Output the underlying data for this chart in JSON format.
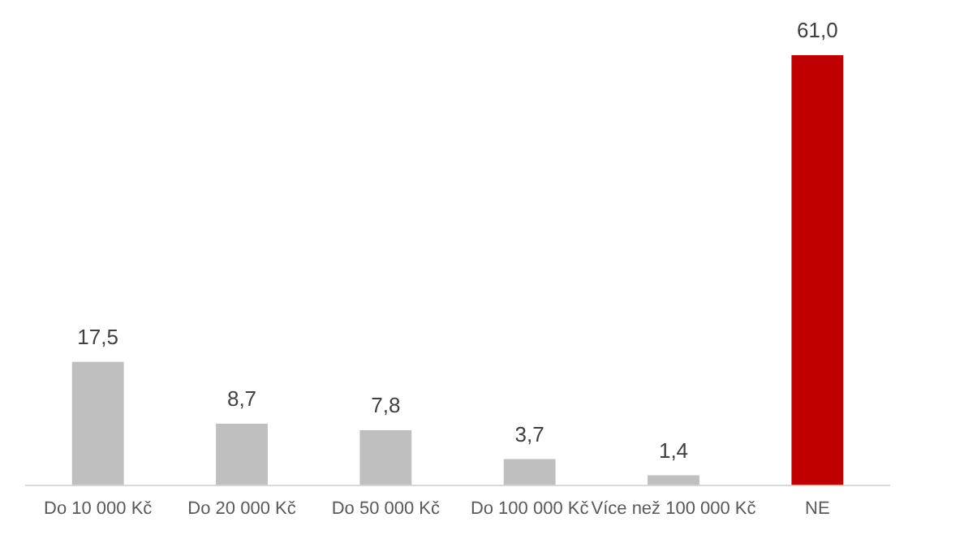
{
  "chart_data": {
    "type": "bar",
    "categories": [
      "Do 10 000 Kč",
      "Do 20 000 Kč",
      "Do 50 000 Kč",
      "Do 100 000 Kč",
      "Více než 100 000 Kč",
      "NE"
    ],
    "values": [
      17.5,
      8.7,
      7.8,
      3.7,
      1.4,
      61.0
    ],
    "colors": [
      "#bfbfbf",
      "#bfbfbf",
      "#bfbfbf",
      "#bfbfbf",
      "#bfbfbf",
      "#c00000"
    ],
    "value_labels": [
      "17,5",
      "8,7",
      "7,8",
      "3,7",
      "1,4",
      "61,0"
    ],
    "relative": false,
    "ylim": [
      0,
      61
    ],
    "grid": false,
    "legend": false
  }
}
